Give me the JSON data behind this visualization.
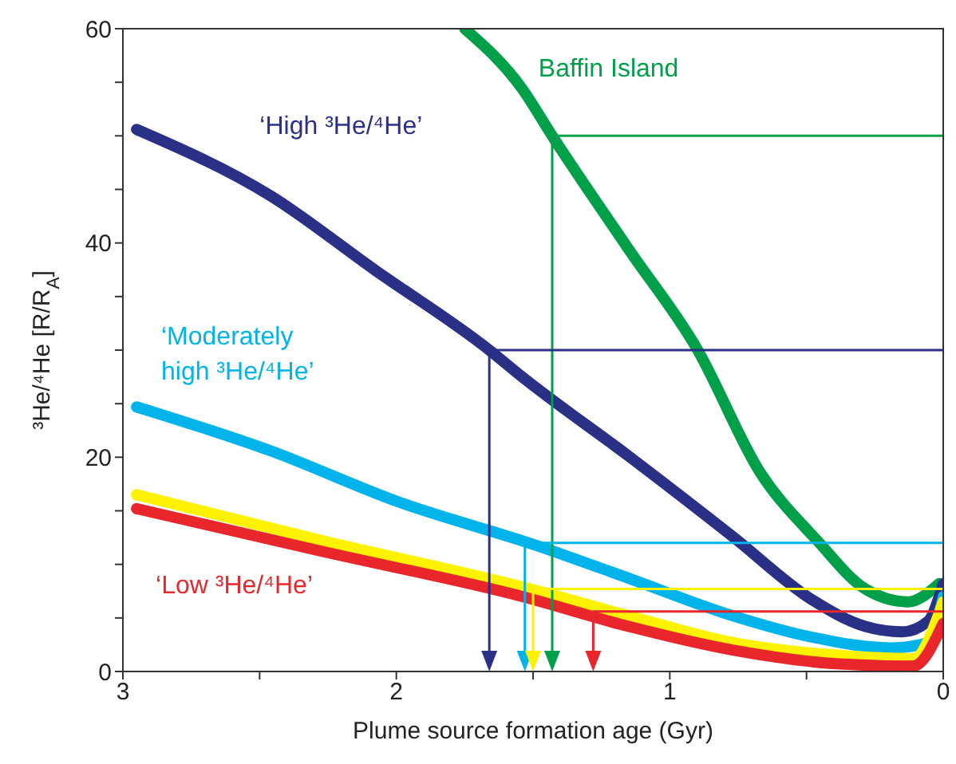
{
  "chart_data": {
    "type": "line",
    "xlabel": "Plume source formation age (Gyr)",
    "ylabel": "³He/⁴He [R/R$_{A}$]",
    "xlim": [
      3,
      0
    ],
    "xticks": [
      3,
      {
        "value": 2.5,
        "label": null
      },
      2,
      {
        "value": 1.5,
        "label": null
      },
      1,
      {
        "value": 0.5,
        "label": null
      },
      0
    ],
    "ylim": [
      0,
      60
    ],
    "yticks": [
      0,
      {
        "value": 5,
        "label": null
      },
      {
        "value": 10,
        "label": null
      },
      {
        "value": 15,
        "label": null
      },
      20,
      {
        "value": 25,
        "label": null
      },
      {
        "value": 30,
        "label": null
      },
      {
        "value": 35,
        "label": null
      },
      40,
      {
        "value": 45,
        "label": null
      },
      {
        "value": 50,
        "label": null
      },
      {
        "value": 55,
        "label": null
      },
      60
    ],
    "marker": "none",
    "line_style": "solid",
    "series": [
      {
        "name": "Baffin Island",
        "color": "#00a04b",
        "x": [
          1.75,
          1.54,
          1.43,
          1.15,
          0.9,
          0.67,
          0.46,
          0.285,
          0.13,
          0.015
        ],
        "values": [
          60,
          54.4,
          50,
          39.4,
          30.1,
          18.6,
          12.2,
          7.7,
          6.5,
          8.2
        ]
      },
      {
        "name": "‘High ³He/⁴He’",
        "color": "#2b3087",
        "x": [
          2.95,
          2.46,
          2.08,
          1.66,
          1.54,
          1.15,
          0.77,
          0.48,
          0.285,
          0.15,
          0.055,
          0
        ],
        "values": [
          50.6,
          44.4,
          37.5,
          30,
          27.5,
          20.1,
          12.6,
          6.7,
          4.2,
          3.7,
          4.7,
          8.2
        ]
      },
      {
        "name": "‘Moderately high ³He/⁴He’",
        "color": "#00b4eb",
        "x": [
          2.95,
          2.46,
          2,
          1.48,
          1.15,
          0.77,
          0.48,
          0.19,
          0.055,
          0
        ],
        "values": [
          24.7,
          20.6,
          15.9,
          11.7,
          8.7,
          5.2,
          3.2,
          2.2,
          2.7,
          7
        ]
      },
      {
        "color": "#fff200",
        "x": [
          2.95,
          2.27,
          1.54,
          1.15,
          0.77,
          0.38,
          0.11,
          0
        ],
        "values": [
          16.5,
          12.2,
          7.9,
          5.2,
          2.7,
          1.5,
          1.2,
          6.5
        ]
      },
      {
        "name": "‘Low ³He/⁴He’",
        "color": "#e8262b",
        "x": [
          2.95,
          2.27,
          1.54,
          1.15,
          0.77,
          0.38,
          0.11,
          0
        ],
        "values": [
          15.2,
          11.2,
          7,
          4.2,
          2,
          0.7,
          0.5,
          4.5
        ]
      }
    ]
  }
}
